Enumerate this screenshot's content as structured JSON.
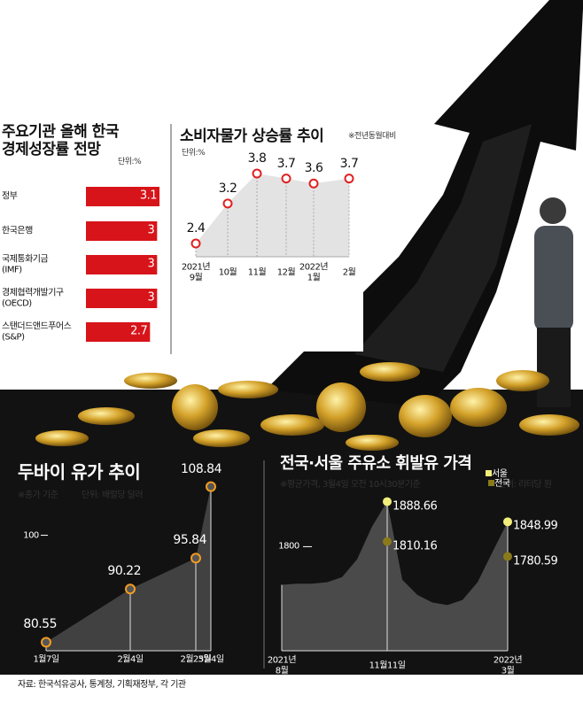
{
  "chart_data": [
    {
      "type": "bar",
      "orientation": "horizontal",
      "title": "주요기관 올해 한국\n경제성장률 전망",
      "unit": "단위:%",
      "categories": [
        "정부",
        "한국은행",
        "국제통화기금\n(IMF)",
        "경제협력개발기구\n(OECD)",
        "스탠더드앤드푸어스\n(S&P)"
      ],
      "values": [
        3.1,
        3,
        3,
        3,
        2.7
      ],
      "color": "#d7141a"
    },
    {
      "type": "line",
      "title": "소비자물가 상승률 추이",
      "note": "※전년동월대비",
      "unit": "단위:%",
      "categories": [
        "2021년\n9월",
        "10월",
        "11월",
        "12월",
        "2022년\n1월",
        "2월"
      ],
      "values": [
        2.4,
        3.2,
        3.8,
        3.7,
        3.6,
        3.7
      ],
      "color": "#e02020"
    },
    {
      "type": "line",
      "title": "두바이 유가 추이",
      "note": "※종가 기준",
      "unit": "단위: 배럴당 달러",
      "categories": [
        "1월7일",
        "2월4일",
        "2월25일",
        "3월4일"
      ],
      "values": [
        80.55,
        90.22,
        95.84,
        108.84
      ],
      "color": "#f39c1f",
      "ylim": [
        79,
        112
      ],
      "yticks": [
        100
      ]
    },
    {
      "type": "line",
      "title": "전국·서울 주유소 휘발유 가격",
      "note": "※평균가격, 3월4일 오전 10시30분기준",
      "unit": "단위: 리터당 원",
      "categories": [
        "2021년\n8월",
        null,
        null,
        null,
        null,
        null,
        null,
        "11월11일",
        null,
        null,
        null,
        null,
        null,
        null,
        null,
        "2022년\n3월"
      ],
      "ylim": [
        1595,
        1935
      ],
      "yticks": [
        1800
      ],
      "series": [
        {
          "name": "서울",
          "color": "#f2ee7a",
          "values": [
            1725,
            1727,
            1727,
            1730,
            1740,
            1775,
            1840,
            1888.66,
            1735,
            1705,
            1690,
            1685,
            1695,
            1730,
            1790,
            1848.99
          ]
        },
        {
          "name": "전국",
          "color": "#8a7a1a",
          "values": [
            1640,
            1640,
            1641,
            1645,
            1655,
            1690,
            1760,
            1810.16,
            1690,
            1650,
            1630,
            1620,
            1625,
            1660,
            1720,
            1780.59
          ]
        }
      ]
    }
  ],
  "source": "자료: 한국석유공사, 통계청, 기획재정부, 각 기관"
}
